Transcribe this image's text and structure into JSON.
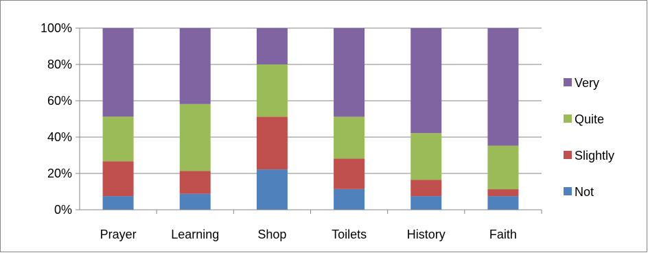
{
  "chart_data": {
    "type": "bar",
    "stacked": "percent",
    "categories": [
      "Prayer",
      "Learning",
      "Shop",
      "Toilets",
      "History",
      "Faith"
    ],
    "series": [
      {
        "name": "Not",
        "color": "#4F81BD",
        "values": [
          7.5,
          8.8,
          22.2,
          11.4,
          7.5,
          7.5
        ]
      },
      {
        "name": "Slightly",
        "color": "#C0504D",
        "values": [
          19.2,
          12.6,
          29.0,
          16.8,
          9.0,
          3.8
        ]
      },
      {
        "name": "Quite",
        "color": "#9BBB59",
        "values": [
          24.6,
          36.8,
          28.8,
          23.0,
          25.7,
          24.0
        ]
      },
      {
        "name": "Very",
        "color": "#8064A2",
        "values": [
          48.7,
          41.8,
          20.0,
          48.8,
          57.8,
          64.7
        ]
      }
    ],
    "ylim": [
      0,
      100
    ],
    "yticks": [
      "0%",
      "20%",
      "40%",
      "60%",
      "80%",
      "100%"
    ],
    "grid": true,
    "legend_position": "right",
    "legend_order": [
      "Very",
      "Quite",
      "Slightly",
      "Not"
    ],
    "title": "",
    "xlabel": "",
    "ylabel": ""
  }
}
